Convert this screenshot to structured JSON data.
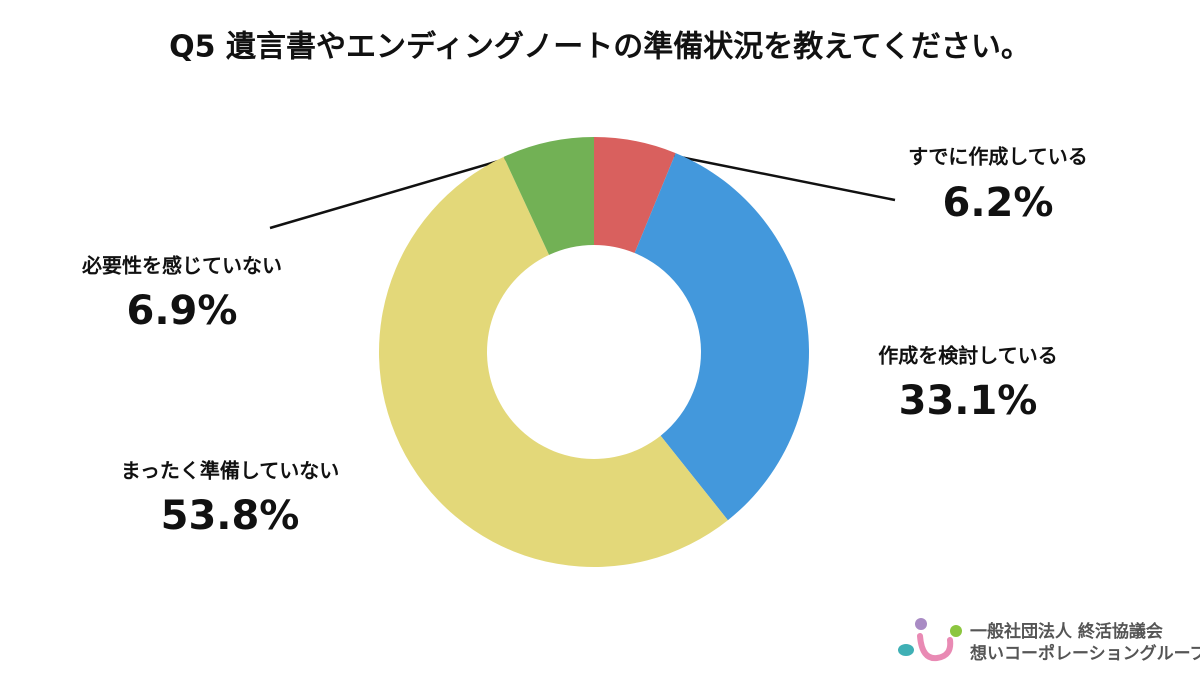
{
  "chart_data": {
    "type": "donut",
    "title": "Q5 遺言書やエンディングノートの準備状況を教えてください。",
    "categories": [
      "すでに作成している",
      "作成を検討している",
      "まったく準備していない",
      "必要性を感じていない"
    ],
    "values": [
      6.2,
      33.1,
      53.8,
      6.9
    ],
    "value_labels": [
      "6.2%",
      "33.1%",
      "53.8%",
      "6.9%"
    ],
    "colors": [
      "#d9605e",
      "#4398dc",
      "#e3d879",
      "#72b155"
    ]
  },
  "logo": {
    "lines": [
      "一般社団法人 終活協議会",
      "想いコーポレーショングループ"
    ]
  }
}
